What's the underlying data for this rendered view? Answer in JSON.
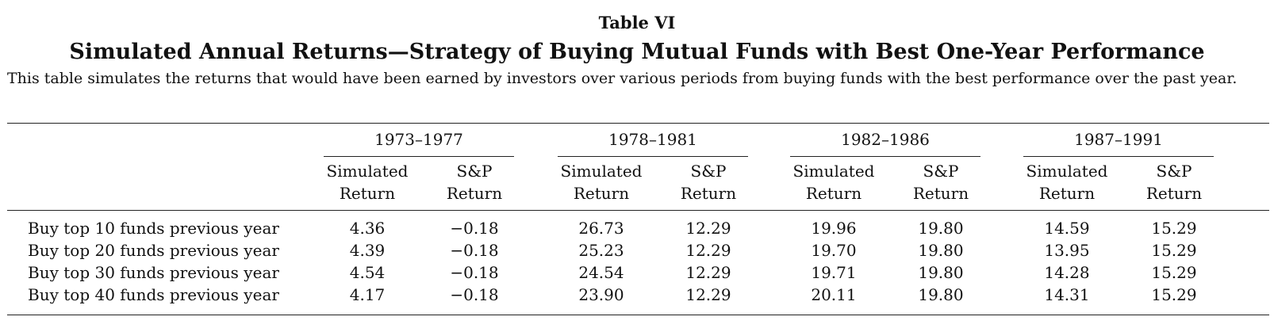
{
  "table": {
    "label": "Table VI",
    "title": "Simulated Annual Returns—Strategy of Buying Mutual Funds with Best One-Year Performance",
    "caption": "This table simulates the returns that would have been earned by investors over various periods from buying funds with the best performance over the past year.",
    "periods": [
      "1973–1977",
      "1978–1981",
      "1982–1986",
      "1987–1991"
    ],
    "subcolumns": [
      {
        "line1": "Simulated",
        "line2": "Return"
      },
      {
        "line1": "S&P",
        "line2": "Return"
      }
    ],
    "rows": [
      {
        "label": "Buy top 10 funds previous year",
        "values": [
          "4.36",
          "−0.18",
          "26.73",
          "12.29",
          "19.96",
          "19.80",
          "14.59",
          "15.29"
        ]
      },
      {
        "label": "Buy top 20 funds previous year",
        "values": [
          "4.39",
          "−0.18",
          "25.23",
          "12.29",
          "19.70",
          "19.80",
          "13.95",
          "15.29"
        ]
      },
      {
        "label": "Buy top 30 funds previous year",
        "values": [
          "4.54",
          "−0.18",
          "24.54",
          "12.29",
          "19.71",
          "19.80",
          "14.28",
          "15.29"
        ]
      },
      {
        "label": "Buy top 40 funds previous year",
        "values": [
          "4.17",
          "−0.18",
          "23.90",
          "12.29",
          "20.11",
          "19.80",
          "14.31",
          "15.29"
        ]
      }
    ]
  }
}
